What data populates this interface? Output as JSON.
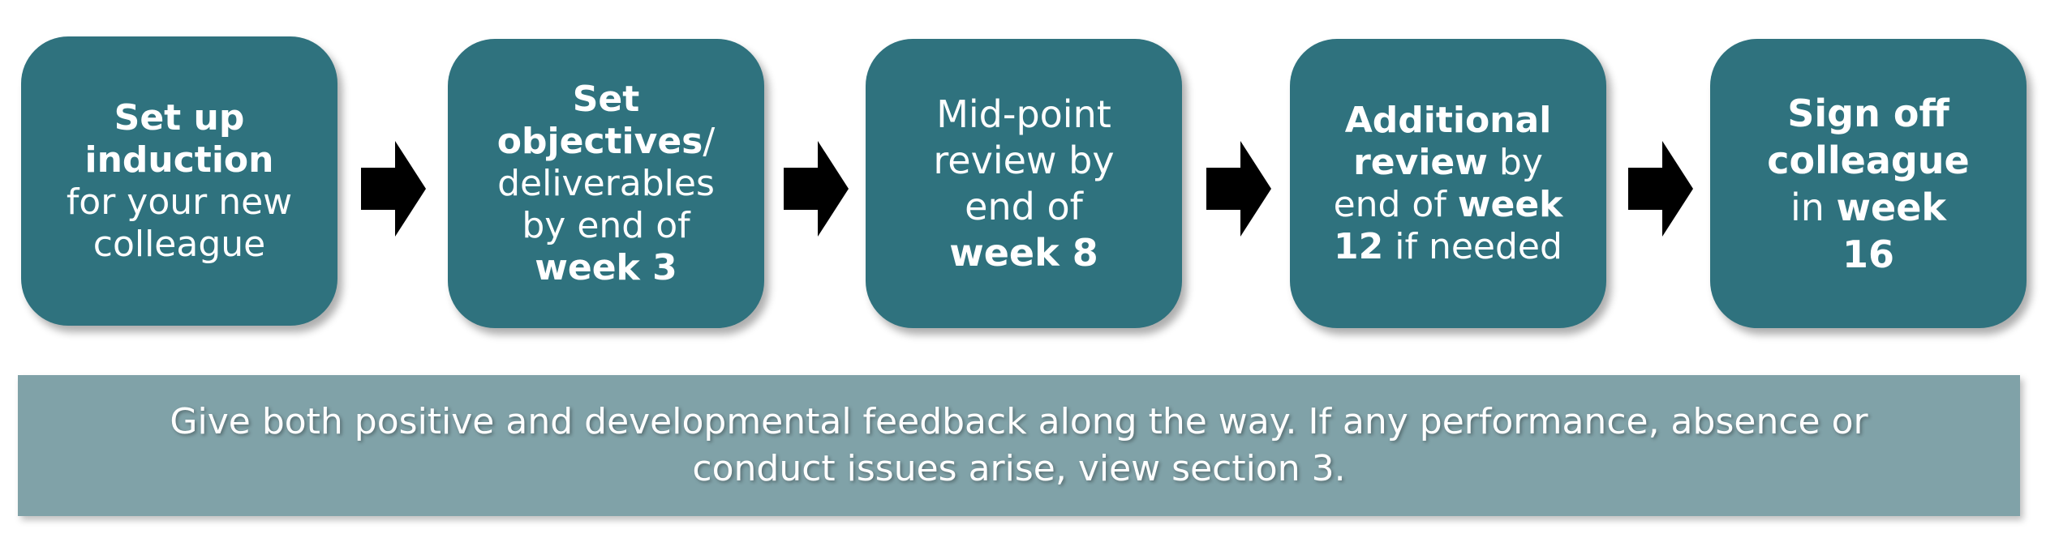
{
  "colors": {
    "step_fill": "#2f727e",
    "banner_fill": "#80a2a8",
    "text": "#ffffff",
    "arrow": "#000000"
  },
  "steps": [
    {
      "lines": [
        [
          {
            "text": "Set up",
            "bold": true
          }
        ],
        [
          {
            "text": "induction",
            "bold": true
          }
        ],
        [
          {
            "text": "for your new",
            "bold": false
          }
        ],
        [
          {
            "text": "colleague",
            "bold": false
          }
        ]
      ]
    },
    {
      "lines": [
        [
          {
            "text": "Set",
            "bold": true
          }
        ],
        [
          {
            "text": "objectives",
            "bold": true
          },
          {
            "text": "/",
            "bold": false
          }
        ],
        [
          {
            "text": "deliverables",
            "bold": false
          }
        ],
        [
          {
            "text": "by end of",
            "bold": false
          }
        ],
        [
          {
            "text": "week 3",
            "bold": true
          }
        ]
      ]
    },
    {
      "lines": [
        [
          {
            "text": "Mid-point",
            "bold": false
          }
        ],
        [
          {
            "text": "review by",
            "bold": false
          }
        ],
        [
          {
            "text": "end of",
            "bold": false
          }
        ],
        [
          {
            "text": "week 8",
            "bold": true
          }
        ]
      ]
    },
    {
      "lines": [
        [
          {
            "text": "Additional",
            "bold": true
          }
        ],
        [
          {
            "text": "review",
            "bold": true
          },
          {
            "text": " by",
            "bold": false
          }
        ],
        [
          {
            "text": "end of ",
            "bold": false
          },
          {
            "text": "week",
            "bold": true
          }
        ],
        [
          {
            "text": "12",
            "bold": true
          },
          {
            "text": " if needed",
            "bold": false
          }
        ]
      ]
    },
    {
      "lines": [
        [
          {
            "text": "Sign off",
            "bold": true
          }
        ],
        [
          {
            "text": "colleague",
            "bold": true
          }
        ],
        [
          {
            "text": "in ",
            "bold": false
          },
          {
            "text": "week",
            "bold": true
          }
        ],
        [
          {
            "text": "16",
            "bold": true
          }
        ]
      ]
    }
  ],
  "banner": {
    "line1": "Give both positive and developmental feedback along the way. If any performance, absence or",
    "line2": "conduct issues arise, view section 3."
  }
}
